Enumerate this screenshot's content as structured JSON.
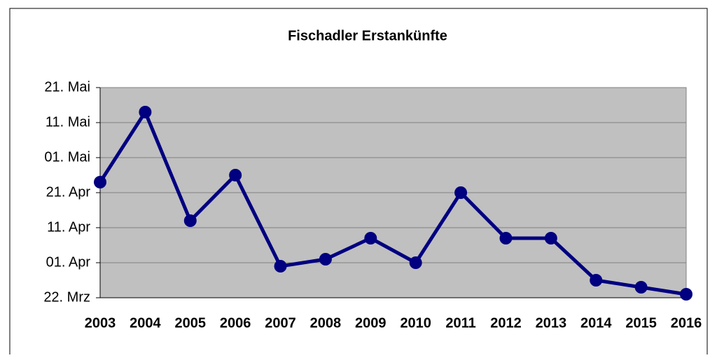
{
  "chart_data": {
    "type": "line",
    "title": "Fischadler Erstankünfte",
    "categories": [
      "2003",
      "2004",
      "2005",
      "2006",
      "2007",
      "2008",
      "2009",
      "2010",
      "2011",
      "2012",
      "2013",
      "2014",
      "2015",
      "2016"
    ],
    "series": [
      {
        "color": "#000080",
        "values": [
          114,
          134,
          103,
          116,
          90,
          92,
          98,
          91,
          111,
          98,
          98,
          86,
          84,
          82
        ]
      }
    ],
    "ylim": [
      81,
      141
    ],
    "yticks": [
      {
        "value": 81,
        "label": "22. Mrz"
      },
      {
        "value": 91,
        "label": "01. Apr"
      },
      {
        "value": 101,
        "label": "11. Apr"
      },
      {
        "value": 111,
        "label": "21. Apr"
      },
      {
        "value": 121,
        "label": "01. Mai"
      },
      {
        "value": 131,
        "label": "11. Mai"
      },
      {
        "value": 141,
        "label": "21. Mai"
      }
    ],
    "grid": true
  }
}
